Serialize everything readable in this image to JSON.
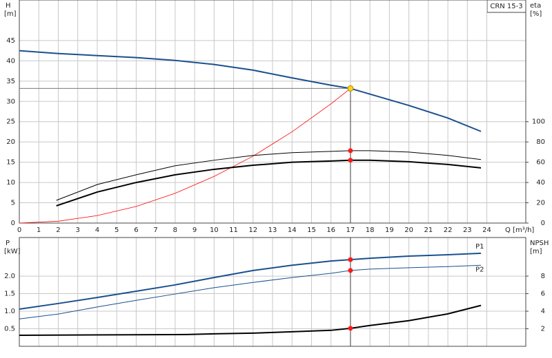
{
  "annotation": "CRN 15-3",
  "chart_data": [
    {
      "type": "line",
      "ylabel": "H",
      "yunit": "[m]",
      "y2label": "eta",
      "y2unit": "[%]",
      "xlabel": "Q [m³/h]",
      "xlim": [
        0,
        26
      ],
      "xticks": [
        0,
        1,
        2,
        3,
        4,
        5,
        6,
        7,
        8,
        9,
        10,
        11,
        12,
        13,
        14,
        15,
        16,
        17,
        18,
        19,
        20,
        21,
        22,
        23,
        24
      ],
      "ylim": [
        0,
        55
      ],
      "yticks": [
        0,
        5,
        10,
        15,
        20,
        25,
        30,
        35,
        40,
        45
      ],
      "y2lim": [
        0,
        220
      ],
      "y2ticks": [
        0,
        20,
        40,
        60,
        80,
        100
      ],
      "grid": true,
      "show_x_labels": true,
      "duty_point": {
        "x": 17,
        "y": 33.2
      },
      "series": [
        {
          "color": "#1a4f8e",
          "width": 2,
          "x": [
            0,
            2,
            4,
            6,
            8,
            10,
            12,
            14,
            16,
            17,
            18,
            20,
            22,
            23.7
          ],
          "values": [
            42.5,
            41.8,
            41.3,
            40.8,
            40.1,
            39.1,
            37.7,
            35.8,
            34.0,
            33.2,
            31.8,
            29.0,
            25.9,
            22.6
          ]
        },
        {
          "color": "#ff0000",
          "width": 0.8,
          "x": [
            0,
            2,
            4,
            6,
            8,
            10,
            12,
            14,
            16,
            17
          ],
          "values": [
            0,
            0.46,
            1.84,
            4.1,
            7.35,
            11.5,
            16.5,
            22.5,
            29.4,
            33.2
          ]
        },
        {
          "color": "#000000",
          "width": 1,
          "axis": "y2",
          "x": [
            1.9,
            4,
            6,
            8,
            10,
            12,
            14,
            16,
            17,
            18,
            20,
            22,
            23.7
          ],
          "values": [
            22.4,
            38,
            47.6,
            56.5,
            62,
            66.7,
            69.4,
            70.7,
            71.4,
            71.4,
            70,
            66.7,
            62.6
          ]
        },
        {
          "color": "#000000",
          "width": 2,
          "axis": "y2",
          "x": [
            1.9,
            4,
            6,
            8,
            10,
            12,
            14,
            16,
            17,
            18,
            20,
            22,
            23.7
          ],
          "values": [
            17,
            30.6,
            40,
            47.6,
            53,
            57,
            60,
            61.2,
            62,
            62,
            60.5,
            57.8,
            54.4
          ]
        }
      ]
    },
    {
      "type": "line",
      "ylabel": "P",
      "yunit": "[kW]",
      "y2label": "NPSH",
      "y2unit": "[m]",
      "xlim": [
        0,
        26
      ],
      "xticks": [
        0,
        1,
        2,
        3,
        4,
        5,
        6,
        7,
        8,
        9,
        10,
        11,
        12,
        13,
        14,
        15,
        16,
        17,
        18,
        19,
        20,
        21,
        22,
        23,
        24
      ],
      "ylim": [
        0,
        3.1
      ],
      "yticks": [
        0.5,
        {
          "value": 1,
          "label": "1.0"
        },
        1.5,
        {
          "value": 2,
          "label": "2.0"
        }
      ],
      "y2lim": [
        0,
        12.4
      ],
      "y2ticks": [
        2,
        4,
        6,
        8
      ],
      "grid": true,
      "show_x_labels": false,
      "duty_point": {
        "x": 17
      },
      "series": [
        {
          "name": "P1",
          "color": "#1a4f8e",
          "width": 2,
          "x": [
            0,
            2,
            4,
            6,
            8,
            10,
            12,
            14,
            16,
            17,
            18,
            20,
            22,
            23.7
          ],
          "values": [
            1.06,
            1.22,
            1.39,
            1.57,
            1.75,
            1.96,
            2.16,
            2.31,
            2.43,
            2.47,
            2.51,
            2.57,
            2.61,
            2.65
          ]
        },
        {
          "name": "P2",
          "color": "#1a4f8e",
          "width": 1,
          "x": [
            0,
            2,
            4,
            6,
            8,
            10,
            12,
            14,
            16,
            17,
            18,
            20,
            22,
            23.7
          ],
          "values": [
            0.78,
            0.92,
            1.12,
            1.31,
            1.49,
            1.67,
            1.82,
            1.96,
            2.08,
            2.16,
            2.2,
            2.24,
            2.27,
            2.31
          ]
        },
        {
          "color": "#000000",
          "width": 2,
          "axis": "y2",
          "x": [
            0,
            8.6,
            10,
            12,
            14,
            16,
            17,
            18,
            20,
            22,
            23.7
          ],
          "values": [
            1.26,
            1.34,
            1.42,
            1.5,
            1.66,
            1.82,
            2.05,
            2.37,
            2.92,
            3.7,
            4.66
          ]
        }
      ]
    }
  ]
}
